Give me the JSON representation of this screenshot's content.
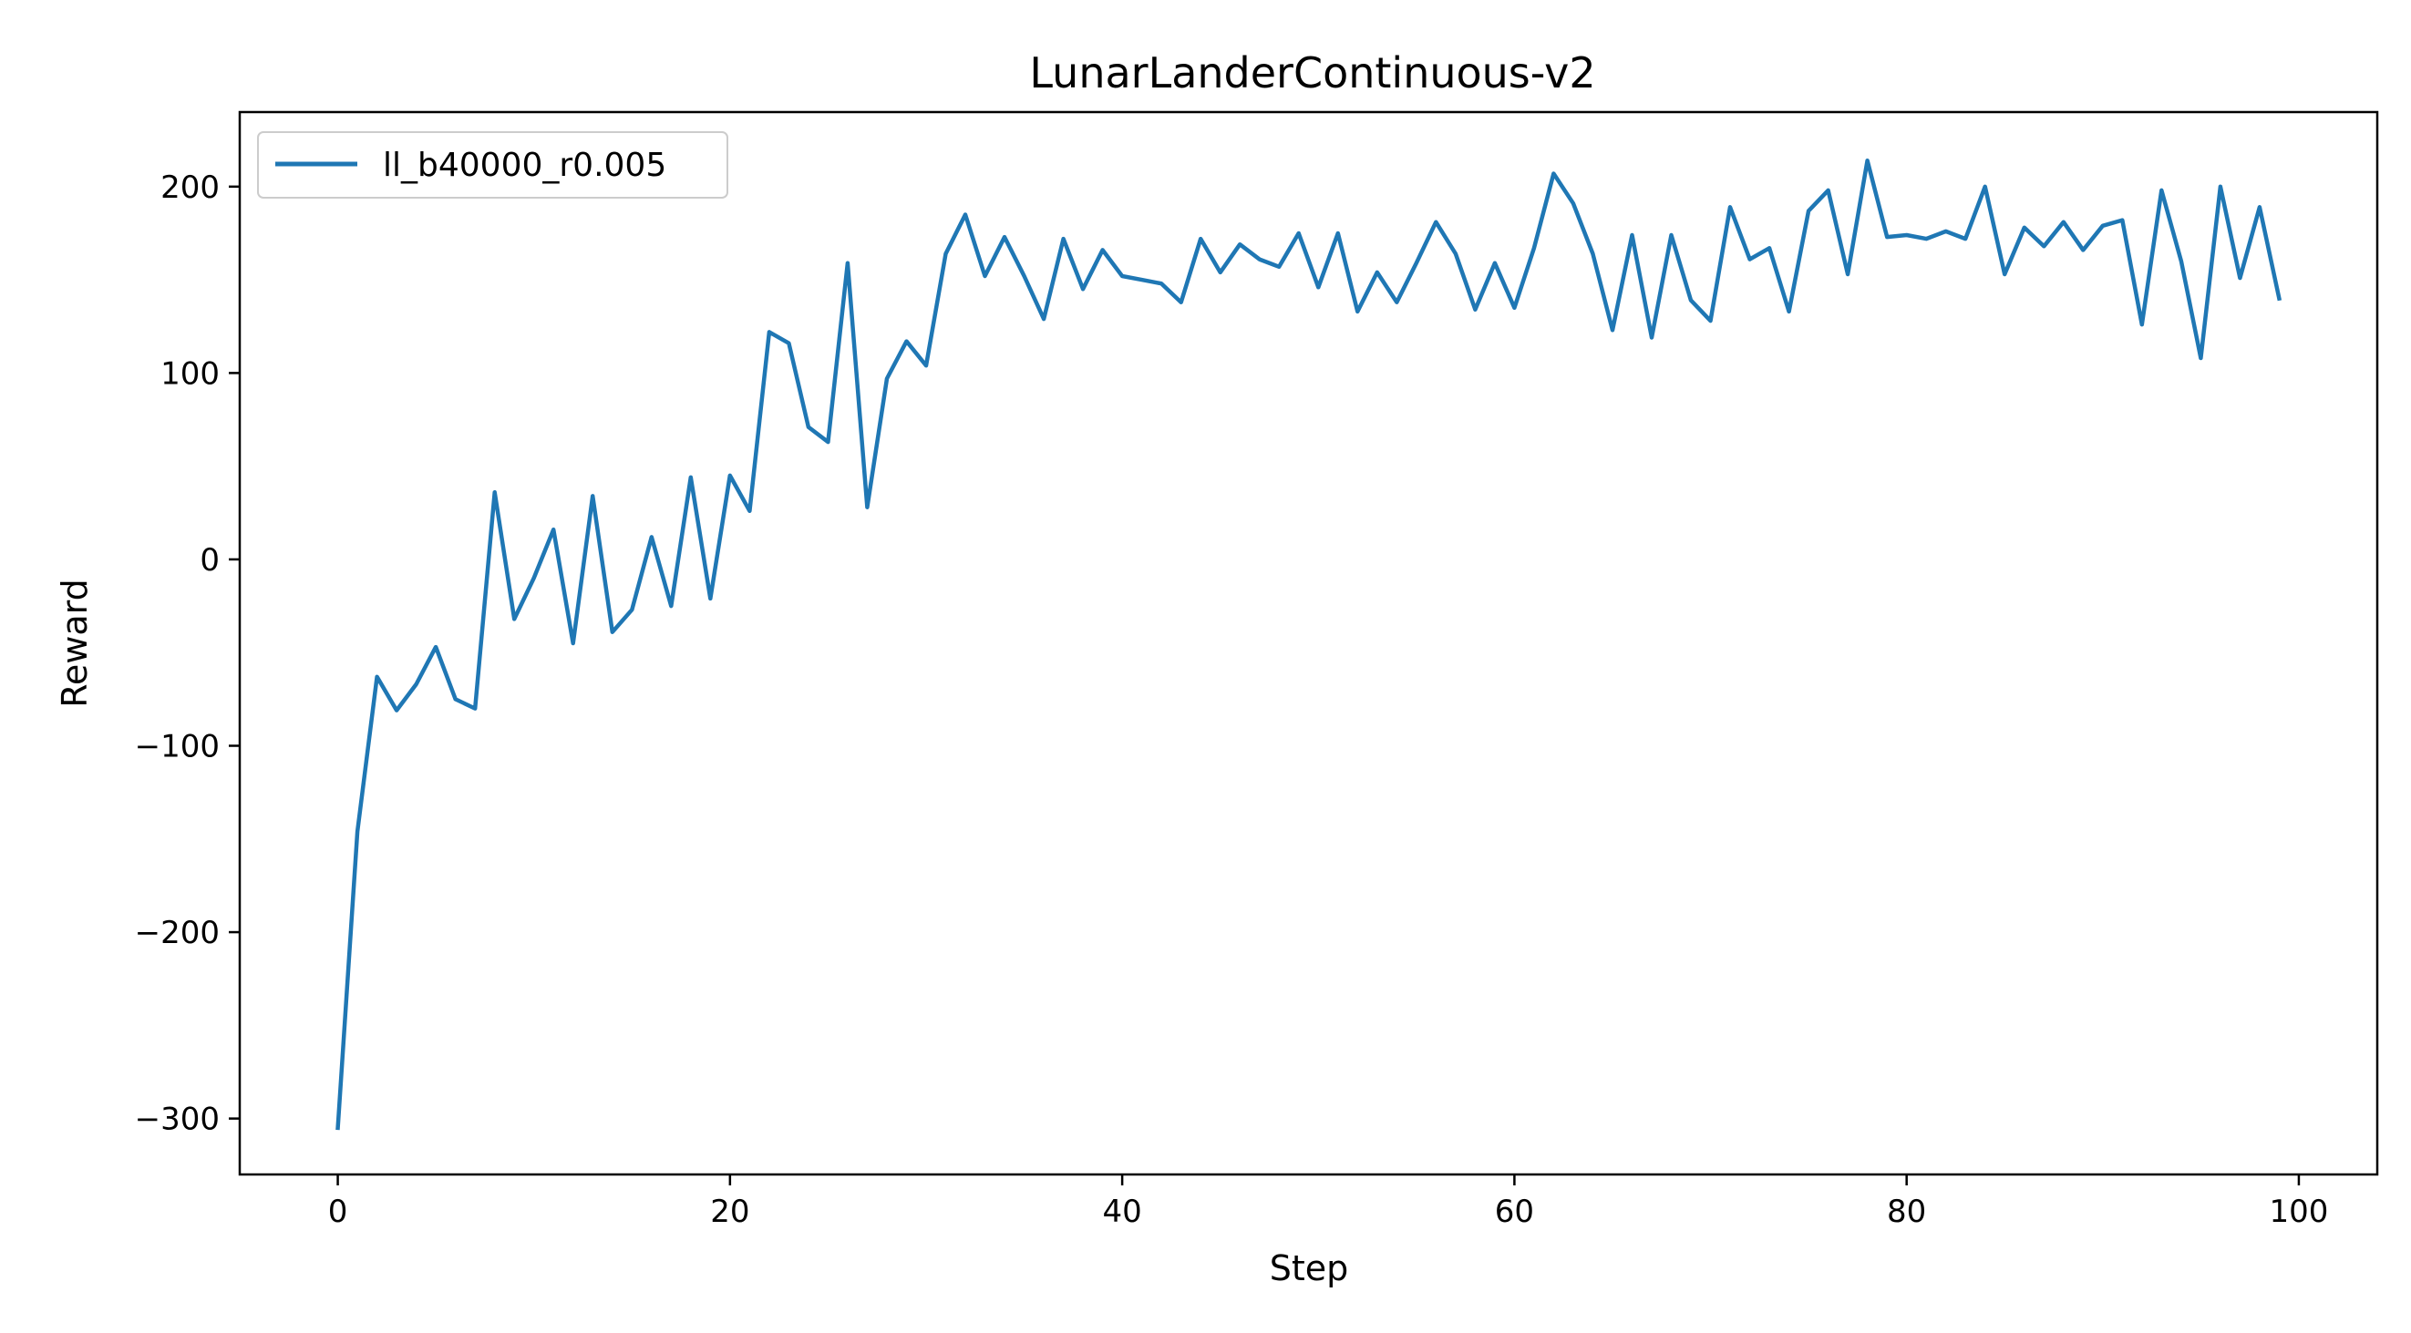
{
  "chart_data": {
    "type": "line",
    "title": "LunarLanderContinuous-v2",
    "xlabel": "Step",
    "ylabel": "Reward",
    "xlim": [
      -5,
      104
    ],
    "ylim": [
      -330,
      240
    ],
    "xticks": [
      0,
      20,
      40,
      60,
      80,
      100
    ],
    "yticks": [
      200,
      100,
      0,
      -100,
      -200,
      -300
    ],
    "xtick_labels": [
      "0",
      "20",
      "40",
      "60",
      "80",
      "100"
    ],
    "ytick_labels": [
      "200",
      "100",
      "0",
      "−100",
      "−200",
      "−300"
    ],
    "grid": false,
    "legend": "upper-left",
    "series": [
      {
        "name": "ll_b40000_r0.005",
        "color": "#1f77b4",
        "x": [
          0,
          1,
          2,
          3,
          4,
          5,
          6,
          7,
          8,
          9,
          10,
          11,
          12,
          13,
          14,
          15,
          16,
          17,
          18,
          19,
          20,
          21,
          22,
          23,
          24,
          25,
          26,
          27,
          28,
          29,
          30,
          31,
          32,
          33,
          34,
          35,
          36,
          37,
          38,
          39,
          40,
          41,
          42,
          43,
          44,
          45,
          46,
          47,
          48,
          49,
          50,
          51,
          52,
          53,
          54,
          55,
          56,
          57,
          58,
          59,
          60,
          61,
          62,
          63,
          64,
          65,
          66,
          67,
          68,
          69,
          70,
          71,
          72,
          73,
          74,
          75,
          76,
          77,
          78,
          79,
          80,
          81,
          82,
          83,
          84,
          85,
          86,
          87,
          88,
          89,
          90,
          91,
          92,
          93,
          94,
          95,
          96,
          97,
          98,
          99
        ],
        "y": [
          -305,
          -146,
          -63,
          -81,
          -67,
          -47,
          -75,
          -80,
          36,
          -32,
          -10,
          16,
          -45,
          34,
          -39,
          -27,
          12,
          -25,
          44,
          -21,
          45,
          26,
          122,
          116,
          71,
          63,
          159,
          28,
          97,
          117,
          104,
          164,
          185,
          152,
          173,
          152,
          129,
          172,
          145,
          166,
          152,
          150,
          148,
          138,
          172,
          154,
          169,
          161,
          157,
          175,
          146,
          175,
          133,
          154,
          138,
          159,
          181,
          164,
          134,
          159,
          135,
          167,
          207,
          191,
          164,
          123,
          174,
          119,
          174,
          139,
          128,
          189,
          161,
          167,
          133,
          187,
          198,
          153,
          214,
          173,
          174,
          172,
          176,
          172,
          200,
          153,
          178,
          168,
          181,
          166,
          179,
          182,
          126,
          198,
          160,
          108,
          200,
          151,
          189,
          140
        ]
      }
    ]
  }
}
